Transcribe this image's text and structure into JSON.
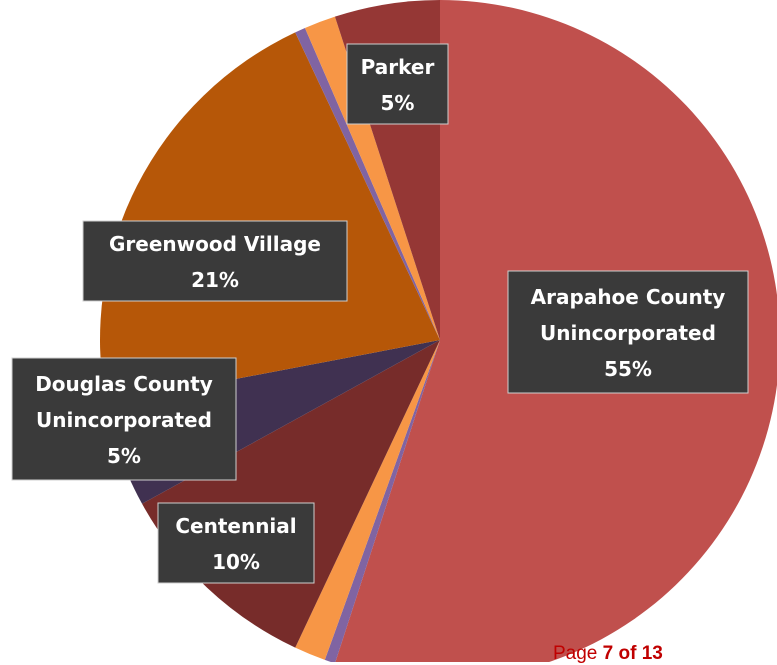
{
  "chart_data": {
    "type": "pie",
    "slices": [
      {
        "label_lines": [
          "Arapahoe County",
          "Unincorporated"
        ],
        "percent_label": "55%",
        "value": 55,
        "color": "#c0504d"
      },
      {
        "label_lines": [],
        "percent_label": "",
        "value": 0.5,
        "color": "#8064a2"
      },
      {
        "label_lines": [],
        "percent_label": "",
        "value": 1.5,
        "color": "#f79646"
      },
      {
        "label_lines": [
          "Centennial"
        ],
        "percent_label": "10%",
        "value": 10,
        "color": "#772c2a"
      },
      {
        "label_lines": [
          "Douglas County",
          "Unincorporated"
        ],
        "percent_label": "5%",
        "value": 5,
        "color": "#403151"
      },
      {
        "label_lines": [
          "Greenwood Village"
        ],
        "percent_label": "21%",
        "value": 21,
        "color": "#b65708"
      },
      {
        "label_lines": [],
        "percent_label": "",
        "value": 0.5,
        "color": "#8064a2"
      },
      {
        "label_lines": [],
        "percent_label": "",
        "value": 1.5,
        "color": "#f79646"
      },
      {
        "label_lines": [
          "Parker"
        ],
        "percent_label": "5%",
        "value": 5,
        "color": "#953735"
      }
    ]
  },
  "footer": {
    "page_word": "Page",
    "current_page": "7",
    "of_word": "of",
    "total_pages": "13"
  }
}
